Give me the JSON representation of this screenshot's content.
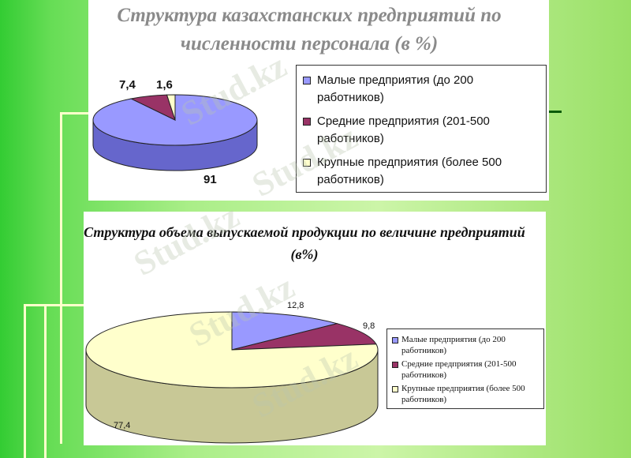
{
  "colors": {
    "small": "#9999ff",
    "small_side": "#6666cc",
    "medium": "#993366",
    "medium_side": "#661f44",
    "large": "#ffffcc",
    "large_side": "#c8c896"
  },
  "watermark": "Stud.kz",
  "chart_data": [
    {
      "type": "pie",
      "title": "Структура казахстанских предприятий по численности персонала (в %)",
      "slices": [
        {
          "name": "Малые предприятия (до 200 работников)",
          "value": 91,
          "label": "91"
        },
        {
          "name": "Средние предприятия (201-500 работников)",
          "value": 7.4,
          "label": "7,4"
        },
        {
          "name": "Крупные предприятия (более 500 работников)",
          "value": 1.6,
          "label": "1,6"
        }
      ],
      "legend": "right"
    },
    {
      "type": "pie",
      "title": "Структура объема выпускаемой продукции по величине предприятий (в%)",
      "slices": [
        {
          "name": "Малые предприятия (до 200 работников)",
          "value": 12.8,
          "label": "12,8"
        },
        {
          "name": "Средние предприятия (201-500 работников)",
          "value": 9.8,
          "label": "9,8"
        },
        {
          "name": "Крупные предприятия (более 500 работников)",
          "value": 77.4,
          "label": "77,4"
        }
      ],
      "legend": "right"
    }
  ]
}
